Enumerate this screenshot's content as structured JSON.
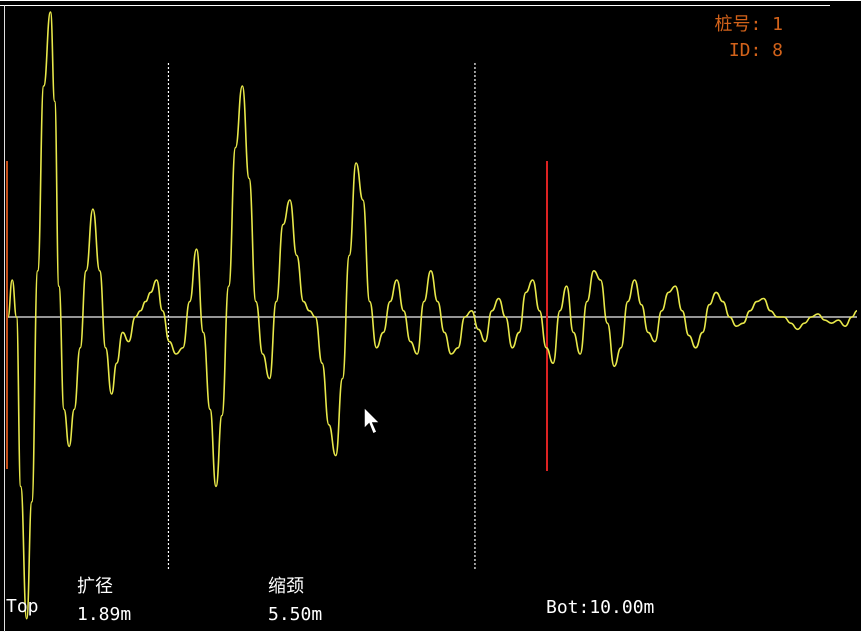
{
  "header": {
    "pile_number": "桩号: 1",
    "pile_id": "ID: 8"
  },
  "markers": {
    "top_label": "Top",
    "bottom_label": "Bot:10.00m",
    "anomalies": [
      {
        "type": "扩径",
        "depth": "1.89m"
      },
      {
        "type": "缩颈",
        "depth": "5.50m"
      }
    ]
  },
  "colors": {
    "background": "#000000",
    "waveform": "#e8e84a",
    "baseline": "#c8c8c8",
    "marker_red": "#dd2222",
    "text": "#ffffff",
    "header_text": "#d2621a"
  },
  "chart_data": {
    "type": "line",
    "title": "",
    "xlabel": "",
    "ylabel": "",
    "x_unit": "m",
    "xlim": [
      0,
      10.0
    ],
    "ylim": [
      -1.0,
      1.0
    ],
    "grid": false,
    "series": [
      {
        "x": [
          0.0,
          0.05,
          0.1,
          0.15,
          0.22,
          0.28,
          0.35,
          0.42,
          0.5,
          0.55,
          0.6,
          0.66,
          0.72,
          0.78,
          0.85,
          0.92,
          1.0,
          1.08,
          1.15,
          1.22,
          1.28,
          1.35,
          1.42,
          1.5,
          1.56,
          1.62,
          1.68,
          1.75,
          1.82,
          1.9,
          1.98,
          2.06,
          2.14,
          2.22,
          2.3,
          2.38,
          2.45,
          2.52,
          2.6,
          2.68,
          2.76,
          2.84,
          2.92,
          3.0,
          3.08,
          3.16,
          3.24,
          3.32,
          3.4,
          3.48,
          3.55,
          3.62,
          3.7,
          3.78,
          3.86,
          3.94,
          4.02,
          4.1,
          4.18,
          4.26,
          4.34,
          4.42,
          4.5,
          4.58,
          4.66,
          4.74,
          4.82,
          4.9,
          4.98,
          5.06,
          5.14,
          5.22,
          5.3,
          5.38,
          5.46,
          5.54,
          5.62,
          5.7,
          5.78,
          5.86,
          5.94,
          6.02,
          6.1,
          6.18,
          6.26,
          6.34,
          6.42,
          6.5,
          6.58,
          6.66,
          6.74,
          6.82,
          6.9,
          6.98,
          7.06,
          7.14,
          7.22,
          7.3,
          7.38,
          7.46,
          7.54,
          7.62,
          7.7,
          7.78,
          7.86,
          7.94,
          8.02,
          8.1,
          8.18,
          8.26,
          8.34,
          8.42,
          8.5,
          8.58,
          8.66,
          8.74,
          8.82,
          8.9,
          8.98,
          9.06,
          9.14,
          9.22,
          9.3,
          9.38,
          9.46,
          9.54,
          9.62,
          9.7,
          9.78,
          9.86,
          9.94,
          10.0
        ],
        "values": [
          0.0,
          0.12,
          0.0,
          -0.55,
          -0.98,
          -0.6,
          0.15,
          0.75,
          0.99,
          0.7,
          0.1,
          -0.3,
          -0.42,
          -0.3,
          -0.1,
          0.15,
          0.35,
          0.15,
          -0.1,
          -0.25,
          -0.15,
          -0.05,
          -0.08,
          0.0,
          0.02,
          0.05,
          0.08,
          0.12,
          0.02,
          -0.08,
          -0.12,
          -0.1,
          0.05,
          0.22,
          -0.05,
          -0.3,
          -0.55,
          -0.32,
          0.1,
          0.55,
          0.75,
          0.45,
          0.05,
          -0.12,
          -0.2,
          0.05,
          0.3,
          0.38,
          0.2,
          0.05,
          0.02,
          0.0,
          -0.15,
          -0.35,
          -0.45,
          -0.2,
          0.2,
          0.5,
          0.38,
          0.05,
          -0.1,
          -0.05,
          0.05,
          0.12,
          0.02,
          -0.08,
          -0.12,
          0.05,
          0.15,
          0.05,
          -0.05,
          -0.12,
          -0.1,
          0.0,
          0.02,
          -0.04,
          -0.08,
          0.02,
          0.06,
          0.0,
          -0.1,
          -0.05,
          0.08,
          0.12,
          0.02,
          -0.1,
          -0.15,
          0.02,
          0.1,
          -0.05,
          -0.12,
          0.05,
          0.15,
          0.12,
          -0.02,
          -0.16,
          -0.1,
          0.05,
          0.12,
          0.04,
          -0.05,
          -0.08,
          0.02,
          0.08,
          0.1,
          0.02,
          -0.06,
          -0.1,
          -0.05,
          0.04,
          0.08,
          0.05,
          0.0,
          -0.03,
          -0.02,
          0.02,
          0.05,
          0.06,
          0.02,
          0.0,
          0.0,
          -0.02,
          -0.04,
          -0.02,
          0.0,
          0.01,
          -0.01,
          -0.02,
          -0.01,
          -0.03,
          0.0,
          0.02
        ]
      }
    ],
    "marker_lines": [
      {
        "x": 1.89,
        "style": "dashed"
      },
      {
        "x": 5.5,
        "style": "dashed"
      },
      {
        "x": 10.0,
        "style": "solid-red"
      }
    ]
  }
}
